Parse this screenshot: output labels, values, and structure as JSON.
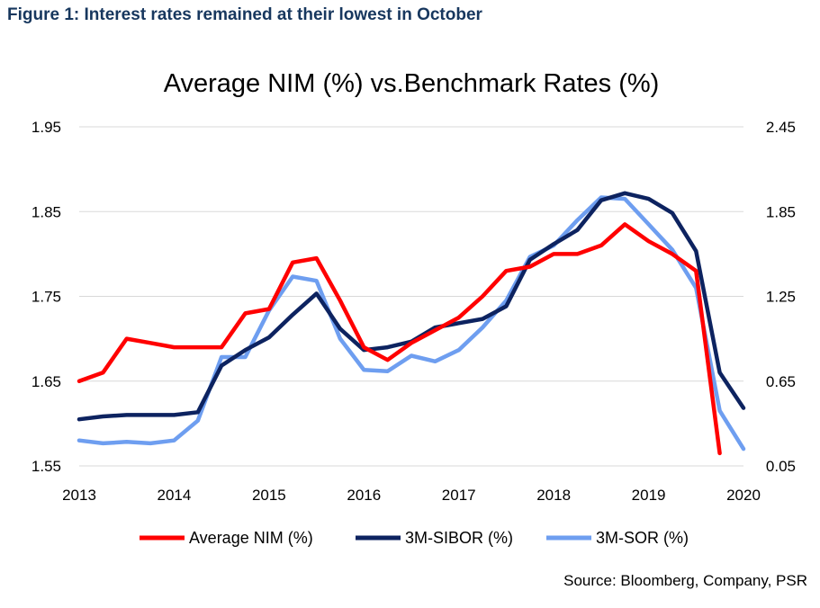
{
  "figure_heading": "Figure 1: Interest rates remained at their lowest in October",
  "source_note": "Source: Bloomberg, Company, PSR",
  "colors": {
    "heading": "#17375e",
    "nim": "#ff0000",
    "sibor": "#0d2360",
    "sor": "#6e9ef0",
    "grid": "#d9d9d9"
  },
  "chart_data": {
    "type": "line",
    "title": "Average NIM (%) vs.Benchmark Rates (%)",
    "x_ticks": [
      "2013",
      "2014",
      "2015",
      "2016",
      "2017",
      "2018",
      "2019",
      "2020"
    ],
    "xlim": [
      2013,
      2020
    ],
    "y_left": {
      "ticks": [
        "1.95",
        "1.85",
        "1.75",
        "1.65",
        "1.55"
      ],
      "lim": [
        1.55,
        1.95
      ]
    },
    "y_right": {
      "ticks": [
        "2.45",
        "1.85",
        "1.25",
        "0.65",
        "0.05"
      ],
      "lim": [
        0.05,
        2.45
      ]
    },
    "grid": true,
    "legend_position": "bottom",
    "series": [
      {
        "name": "Average NIM (%)",
        "axis": "left",
        "color": "#ff0000",
        "x": [
          2013.0,
          2013.25,
          2013.5,
          2013.75,
          2014.0,
          2014.25,
          2014.5,
          2014.75,
          2015.0,
          2015.25,
          2015.5,
          2015.75,
          2016.0,
          2016.25,
          2016.5,
          2016.75,
          2017.0,
          2017.25,
          2017.5,
          2017.75,
          2018.0,
          2018.25,
          2018.5,
          2018.75,
          2019.0,
          2019.25,
          2019.5,
          2019.75
        ],
        "y": [
          1.65,
          1.66,
          1.7,
          1.695,
          1.69,
          1.69,
          1.69,
          1.73,
          1.735,
          1.79,
          1.795,
          1.745,
          1.69,
          1.675,
          1.695,
          1.71,
          1.725,
          1.75,
          1.78,
          1.785,
          1.8,
          1.8,
          1.81,
          1.835,
          1.815,
          1.8,
          1.78,
          1.565
        ]
      },
      {
        "name": "3M-SIBOR (%)",
        "axis": "right",
        "color": "#0d2360",
        "x": [
          2013.0,
          2013.25,
          2013.5,
          2013.75,
          2014.0,
          2014.25,
          2014.5,
          2014.75,
          2015.0,
          2015.25,
          2015.5,
          2015.75,
          2016.0,
          2016.25,
          2016.5,
          2016.75,
          2017.0,
          2017.25,
          2017.5,
          2017.75,
          2018.0,
          2018.25,
          2018.5,
          2018.75,
          2019.0,
          2019.25,
          2019.5,
          2019.75,
          2020.0
        ],
        "y": [
          0.38,
          0.4,
          0.41,
          0.41,
          0.41,
          0.43,
          0.76,
          0.87,
          0.96,
          1.12,
          1.27,
          1.02,
          0.87,
          0.89,
          0.93,
          1.03,
          1.06,
          1.09,
          1.18,
          1.51,
          1.62,
          1.72,
          1.93,
          1.98,
          1.94,
          1.84,
          1.57,
          0.71,
          0.46
        ]
      },
      {
        "name": "3M-SOR (%)",
        "axis": "right",
        "color": "#6e9ef0",
        "x": [
          2013.0,
          2013.25,
          2013.5,
          2013.75,
          2014.0,
          2014.25,
          2014.5,
          2014.75,
          2015.0,
          2015.25,
          2015.5,
          2015.75,
          2016.0,
          2016.25,
          2016.5,
          2016.75,
          2017.0,
          2017.25,
          2017.5,
          2017.75,
          2018.0,
          2018.25,
          2018.5,
          2018.75,
          2019.0,
          2019.25,
          2019.5,
          2019.75,
          2020.0
        ],
        "y": [
          0.23,
          0.21,
          0.22,
          0.21,
          0.23,
          0.37,
          0.82,
          0.82,
          1.15,
          1.39,
          1.36,
          0.95,
          0.73,
          0.72,
          0.83,
          0.79,
          0.87,
          1.03,
          1.22,
          1.53,
          1.61,
          1.79,
          1.95,
          1.94,
          1.76,
          1.58,
          1.31,
          0.44,
          0.17
        ]
      }
    ]
  }
}
